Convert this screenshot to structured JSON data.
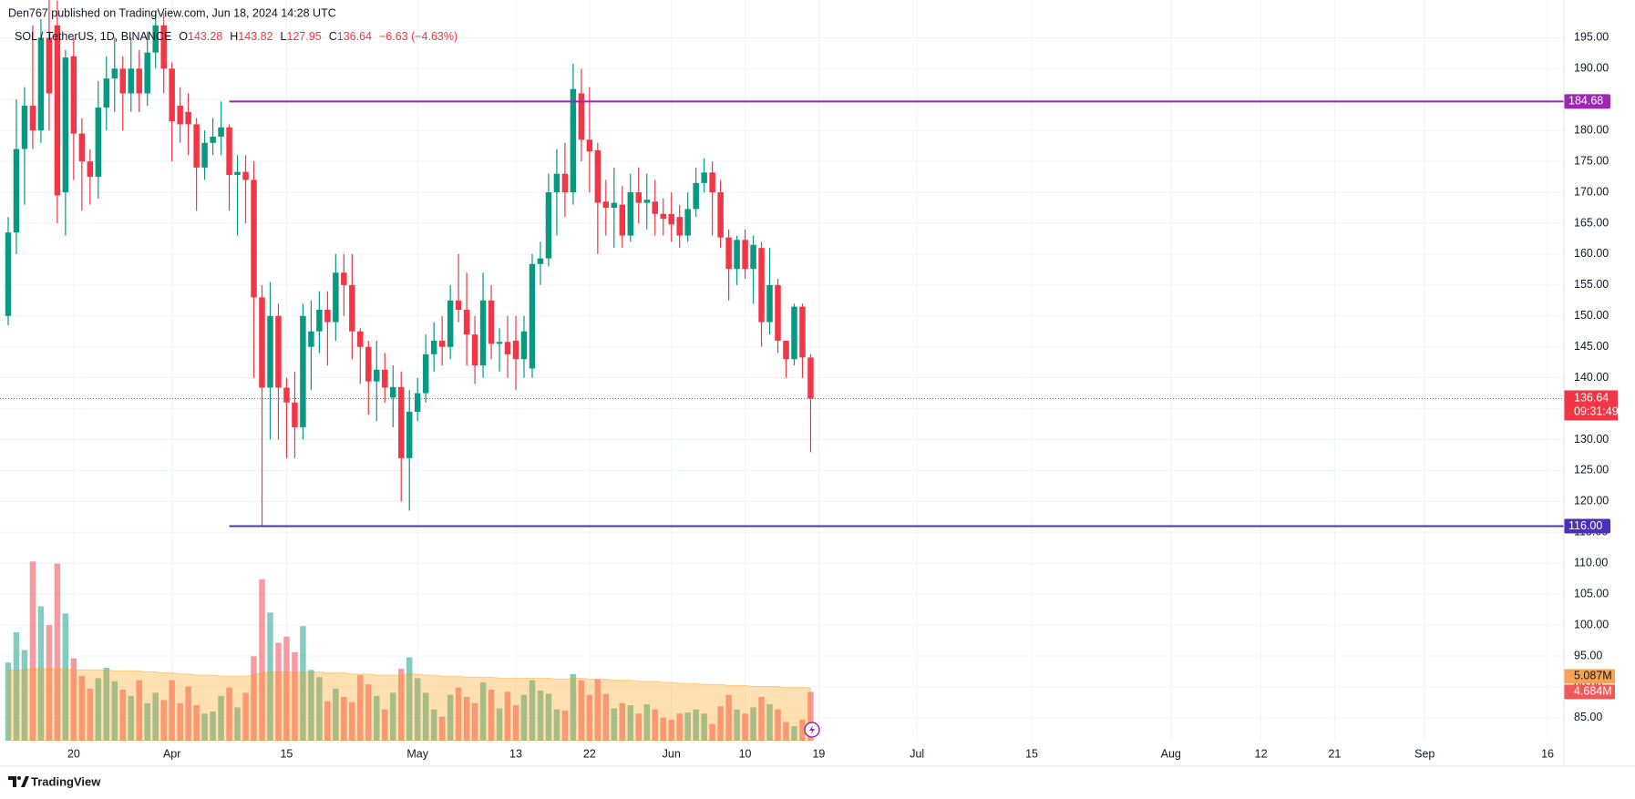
{
  "header": {
    "byline": "Den767 published on TradingView.com, Jun 18, 2024 14:28 UTC"
  },
  "footer": {
    "brand": "TradingView"
  },
  "chart_data": {
    "type": "candlestick",
    "legend": {
      "symbol": "SOL / TetherUS, 1D, BINANCE",
      "fields": [
        {
          "key": "O",
          "value": 143.28
        },
        {
          "key": "H",
          "value": 143.82
        },
        {
          "key": "L",
          "value": 127.95
        },
        {
          "key": "C",
          "value": 136.64
        }
      ],
      "change": "−6.63 (−4.63%)"
    },
    "x": [
      "2024-03-12",
      "2024-03-13",
      "2024-03-14",
      "2024-03-15",
      "2024-03-16",
      "2024-03-17",
      "2024-03-18",
      "2024-03-19",
      "2024-03-20",
      "2024-03-21",
      "2024-03-22",
      "2024-03-23",
      "2024-03-24",
      "2024-03-25",
      "2024-03-26",
      "2024-03-27",
      "2024-03-28",
      "2024-03-29",
      "2024-03-30",
      "2024-03-31",
      "2024-04-01",
      "2024-04-02",
      "2024-04-03",
      "2024-04-04",
      "2024-04-05",
      "2024-04-06",
      "2024-04-07",
      "2024-04-08",
      "2024-04-09",
      "2024-04-10",
      "2024-04-11",
      "2024-04-12",
      "2024-04-13",
      "2024-04-14",
      "2024-04-15",
      "2024-04-16",
      "2024-04-17",
      "2024-04-18",
      "2024-04-19",
      "2024-04-20",
      "2024-04-21",
      "2024-04-22",
      "2024-04-23",
      "2024-04-24",
      "2024-04-25",
      "2024-04-26",
      "2024-04-27",
      "2024-04-28",
      "2024-04-29",
      "2024-04-30",
      "2024-05-01",
      "2024-05-02",
      "2024-05-03",
      "2024-05-04",
      "2024-05-05",
      "2024-05-06",
      "2024-05-07",
      "2024-05-08",
      "2024-05-09",
      "2024-05-10",
      "2024-05-11",
      "2024-05-12",
      "2024-05-13",
      "2024-05-14",
      "2024-05-15",
      "2024-05-16",
      "2024-05-17",
      "2024-05-18",
      "2024-05-19",
      "2024-05-20",
      "2024-05-21",
      "2024-05-22",
      "2024-05-23",
      "2024-05-24",
      "2024-05-25",
      "2024-05-26",
      "2024-05-27",
      "2024-05-28",
      "2024-05-29",
      "2024-05-30",
      "2024-05-31",
      "2024-06-01",
      "2024-06-02",
      "2024-06-03",
      "2024-06-04",
      "2024-06-05",
      "2024-06-06",
      "2024-06-07",
      "2024-06-08",
      "2024-06-09",
      "2024-06-10",
      "2024-06-11",
      "2024-06-12",
      "2024-06-13",
      "2024-06-14",
      "2024-06-15",
      "2024-06-16",
      "2024-06-17",
      "2024-06-18"
    ],
    "open": [
      150,
      163.5,
      177,
      184,
      180,
      195,
      197,
      170,
      192,
      179.5,
      175,
      172.5,
      183.7,
      188.4,
      190,
      186,
      190,
      186,
      192.6,
      197,
      190,
      184,
      183,
      181,
      174,
      178,
      179,
      180.5,
      172.8,
      173.3,
      172,
      153,
      138.4,
      150,
      138.4,
      136,
      132,
      145,
      147.5,
      151,
      149,
      157,
      155,
      147.5,
      145,
      139.4,
      141.3,
      136.8,
      138.5,
      127,
      134.5,
      137.5,
      143.8,
      146,
      145,
      152.5,
      151,
      147,
      142,
      152.5,
      145.5,
      145.8,
      146,
      143,
      141.5,
      158.4,
      159.3,
      170,
      173,
      170,
      186,
      178.5,
      176.8,
      168.5,
      167.5,
      168,
      163,
      170,
      168.3,
      168.5,
      166.5,
      166.5,
      166,
      163,
      167.3,
      171.5,
      173.2,
      170,
      162.7,
      157.6,
      162.3,
      157.6,
      161,
      149,
      155,
      146,
      143,
      151.5,
      143.28
    ],
    "high": [
      166,
      185,
      187,
      197,
      198,
      206,
      201,
      193,
      195,
      182,
      177,
      188,
      192,
      195,
      192,
      195,
      193,
      196,
      199,
      199,
      191,
      187,
      186,
      182,
      180,
      182,
      184.68,
      181,
      176,
      176,
      175,
      155,
      155.5,
      152,
      140,
      141,
      152,
      152.5,
      154,
      154,
      160,
      160,
      160,
      148,
      146,
      146,
      144,
      142,
      141,
      138,
      140,
      147,
      149,
      150,
      155,
      160,
      157,
      150,
      157,
      155,
      148,
      150,
      150,
      150,
      160,
      162,
      173,
      177,
      178,
      190.8,
      190,
      187,
      178,
      172,
      174,
      171,
      173,
      174,
      173,
      172,
      169,
      170,
      168,
      170,
      174,
      175.5,
      175,
      172,
      164,
      163,
      164,
      163,
      162,
      161,
      156,
      146,
      152,
      152,
      143.82
    ],
    "low": [
      148.5,
      160,
      168,
      177,
      178,
      180,
      165,
      163,
      172,
      167,
      168,
      169,
      180,
      183,
      180,
      183,
      183,
      184,
      190,
      186,
      175,
      178,
      176,
      167,
      172,
      176,
      176,
      167,
      163,
      165,
      140,
      116,
      130,
      130,
      127,
      127,
      130,
      138,
      144,
      142,
      146,
      150,
      143,
      139,
      134,
      133,
      136,
      132,
      120,
      118.5,
      133,
      136,
      141,
      142,
      143,
      149,
      142,
      139,
      140,
      143,
      141,
      140,
      138,
      140,
      140,
      155,
      158,
      163,
      166,
      168,
      175,
      170,
      160,
      163,
      161,
      161,
      162,
      165,
      164,
      163,
      163,
      162,
      161,
      162,
      166,
      170,
      163,
      161,
      152.5,
      155,
      156,
      152,
      145,
      147,
      144,
      140,
      142,
      140,
      127.95
    ],
    "close": [
      163.5,
      177,
      184,
      180,
      195,
      186,
      169.5,
      191.8,
      179.5,
      175,
      172.5,
      183.7,
      188.4,
      190,
      186,
      190,
      186,
      192.6,
      197,
      190,
      181.5,
      181,
      181,
      174,
      178,
      179,
      180.5,
      172.8,
      173.3,
      172,
      153,
      138.4,
      150,
      138.4,
      136,
      132,
      150,
      147.5,
      151,
      149,
      157,
      155,
      147.5,
      145,
      139.4,
      141.3,
      138.4,
      138.5,
      127,
      134.5,
      137.5,
      143.8,
      146,
      145,
      152.5,
      151,
      147,
      142,
      152.5,
      145.5,
      145.8,
      143.8,
      143,
      147.5,
      158.4,
      159.3,
      170,
      173,
      170,
      186.7,
      178.5,
      176.6,
      168.3,
      167.5,
      168.3,
      163,
      170,
      168.3,
      168.8,
      166.5,
      165.7,
      164.8,
      163,
      167.3,
      171.5,
      173.2,
      170,
      162.7,
      157.6,
      162.3,
      157.6,
      161.5,
      149,
      155,
      146,
      143,
      151.5,
      143.3,
      136.64
    ],
    "up_color": "#089981",
    "down_color": "#f23645",
    "volume": [
      7.5,
      10.4,
      8.7,
      17.2,
      12.9,
      11.1,
      17.0,
      12.2,
      7.9,
      6.2,
      5.0,
      6.0,
      7.0,
      5.7,
      4.9,
      4.3,
      5.8,
      3.6,
      4.6,
      3.9,
      5.8,
      3.6,
      5.2,
      3.4,
      2.6,
      2.8,
      4.3,
      5.1,
      3.2,
      4.6,
      8.1,
      15.5,
      12.3,
      9.4,
      10.0,
      8.5,
      11.0,
      6.8,
      6.1,
      3.8,
      5.0,
      4.2,
      3.7,
      6.3,
      5.4,
      4.3,
      3.0,
      4.6,
      6.9,
      8.0,
      6.0,
      4.6,
      3.0,
      2.3,
      4.4,
      5.1,
      4.2,
      3.6,
      5.6,
      4.9,
      3.1,
      4.7,
      3.4,
      4.4,
      5.8,
      4.8,
      4.5,
      3.0,
      2.9,
      6.4,
      5.8,
      4.4,
      5.9,
      4.5,
      3.1,
      3.6,
      3.4,
      2.6,
      3.5,
      3.0,
      2.2,
      2.0,
      2.6,
      2.7,
      3.0,
      2.6,
      1.6,
      3.3,
      4.4,
      3.0,
      2.6,
      3.2,
      4.2,
      3.5,
      3.0,
      1.8,
      1.4,
      2.0,
      4.684
    ],
    "volume_label": "4.684M",
    "volume_ma": [
      6.8,
      6.8,
      6.8,
      6.9,
      6.9,
      6.9,
      6.9,
      6.9,
      6.8,
      6.8,
      6.8,
      6.8,
      6.8,
      6.7,
      6.7,
      6.7,
      6.7,
      6.6,
      6.6,
      6.5,
      6.5,
      6.4,
      6.4,
      6.3,
      6.3,
      6.3,
      6.2,
      6.2,
      6.2,
      6.2,
      6.3,
      6.5,
      6.6,
      6.6,
      6.6,
      6.6,
      6.6,
      6.6,
      6.6,
      6.5,
      6.5,
      6.5,
      6.4,
      6.4,
      6.4,
      6.3,
      6.3,
      6.3,
      6.3,
      6.4,
      6.4,
      6.3,
      6.3,
      6.2,
      6.2,
      6.2,
      6.1,
      6.1,
      6.1,
      6.1,
      6.0,
      6.0,
      6.0,
      6.0,
      6.0,
      6.0,
      6.0,
      5.9,
      5.9,
      6.0,
      6.0,
      5.9,
      5.9,
      5.9,
      5.8,
      5.8,
      5.8,
      5.7,
      5.7,
      5.7,
      5.6,
      5.6,
      5.5,
      5.5,
      5.5,
      5.4,
      5.4,
      5.4,
      5.3,
      5.3,
      5.3,
      5.2,
      5.2,
      5.2,
      5.2,
      5.1,
      5.1,
      5.1,
      5.087
    ],
    "volume_ma_label": "5.087M",
    "volume_ma_color": "#ff9800",
    "volume_lim": [
      0,
      71.1
    ],
    "xlim": [
      "2024-03-11",
      "2024-09-18"
    ],
    "xticks": [
      {
        "value": "2024-03-20",
        "label": "20"
      },
      {
        "value": "2024-04-01",
        "label": "Apr"
      },
      {
        "value": "2024-04-15",
        "label": "15"
      },
      {
        "value": "2024-05-01",
        "label": "May"
      },
      {
        "value": "2024-05-13",
        "label": "13"
      },
      {
        "value": "2024-05-22",
        "label": "22"
      },
      {
        "value": "2024-06-01",
        "label": "Jun"
      },
      {
        "value": "2024-06-10",
        "label": "10"
      },
      {
        "value": "2024-06-19",
        "label": "19"
      },
      {
        "value": "2024-07-01",
        "label": "Jul"
      },
      {
        "value": "2024-07-15",
        "label": "15"
      },
      {
        "value": "2024-08-01",
        "label": "Aug"
      },
      {
        "value": "2024-08-12",
        "label": "12"
      },
      {
        "value": "2024-08-21",
        "label": "21"
      },
      {
        "value": "2024-09-01",
        "label": "Sep"
      },
      {
        "value": "2024-09-16",
        "label": "16"
      }
    ],
    "ylim": [
      81.3,
      201.1
    ],
    "yticks": [
      {
        "value": 85,
        "label": "85.00"
      },
      {
        "value": 90,
        "label": "90.00"
      },
      {
        "value": 95,
        "label": "95.00"
      },
      {
        "value": 100,
        "label": "100.00"
      },
      {
        "value": 105,
        "label": "105.00"
      },
      {
        "value": 110,
        "label": "110.00"
      },
      {
        "value": 115,
        "label": "115.00"
      },
      {
        "value": 120,
        "label": "120.00"
      },
      {
        "value": 125,
        "label": "125.00"
      },
      {
        "value": 130,
        "label": "130.00"
      },
      {
        "value": 135,
        "label": "135.00"
      },
      {
        "value": 140,
        "label": "140.00"
      },
      {
        "value": 145,
        "label": "145.00"
      },
      {
        "value": 150,
        "label": "150.00"
      },
      {
        "value": 155,
        "label": "155.00"
      },
      {
        "value": 160,
        "label": "160.00"
      },
      {
        "value": 165,
        "label": "165.00"
      },
      {
        "value": 170,
        "label": "170.00"
      },
      {
        "value": 175,
        "label": "175.00"
      },
      {
        "value": 180,
        "label": "180.00"
      },
      {
        "value": 185,
        "label": "185.00"
      },
      {
        "value": 190,
        "label": "190.00"
      },
      {
        "value": 195,
        "label": "195.00"
      }
    ],
    "grid": true,
    "levels": [
      {
        "value": 184.68,
        "label": "184.68",
        "color": "#9c27b0",
        "from": "2024-04-08"
      },
      {
        "value": 116,
        "label": "116.00",
        "color": "#4a2fb8",
        "from": "2024-04-08"
      }
    ],
    "last_price": {
      "value": 136.64,
      "label": "136.64",
      "countdown": "09:31:49",
      "color": "#f23645"
    }
  }
}
